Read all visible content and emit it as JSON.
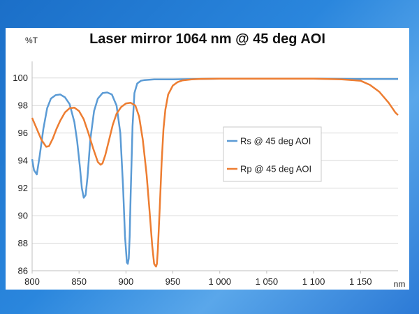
{
  "slide": {
    "background_primary": "#1b6fc8",
    "background_secondary": "#5aa7ea"
  },
  "chart_data": {
    "type": "line",
    "title": "Laser mirror 1064 nm @ 45 deg AOI",
    "ylabel": "%T",
    "xlabel": "nm",
    "xlim": [
      800,
      1190
    ],
    "ylim": [
      86,
      101
    ],
    "x_ticks": [
      800,
      850,
      900,
      950,
      1000,
      1050,
      1100,
      1150
    ],
    "x_tick_labels": [
      "800",
      "850",
      "900",
      "950",
      "1 000",
      "1 050",
      "1 100",
      "1 150"
    ],
    "y_ticks": [
      86,
      88,
      90,
      92,
      94,
      96,
      98,
      100
    ],
    "y_tick_labels": [
      "86",
      "88",
      "90",
      "92",
      "94",
      "96",
      "98",
      "100"
    ],
    "grid": "horizontal",
    "legend_position": "center-right",
    "series": [
      {
        "name": "Rs @ 45 deg AOI",
        "color": "#5b9bd5",
        "x": [
          800,
          802,
          805,
          808,
          812,
          816,
          820,
          825,
          830,
          835,
          840,
          845,
          848,
          851,
          853,
          855,
          857,
          859,
          862,
          866,
          870,
          875,
          880,
          885,
          890,
          894,
          897,
          899,
          901,
          902,
          903,
          904,
          905,
          907,
          909,
          912,
          916,
          920,
          930,
          950,
          1000,
          1050,
          1100,
          1150,
          1190
        ],
        "y": [
          94.1,
          93.3,
          93.0,
          94.3,
          96.3,
          97.8,
          98.5,
          98.75,
          98.8,
          98.6,
          98.1,
          96.8,
          95.4,
          93.5,
          92.0,
          91.3,
          91.5,
          92.8,
          95.5,
          97.6,
          98.5,
          98.9,
          98.95,
          98.8,
          98.0,
          96.0,
          92.0,
          88.5,
          86.6,
          86.5,
          86.9,
          88.5,
          91.5,
          96.5,
          98.9,
          99.6,
          99.8,
          99.85,
          99.9,
          99.9,
          99.95,
          99.95,
          99.95,
          99.92,
          99.92
        ]
      },
      {
        "name": "Rp @ 45 deg AOI",
        "color": "#ed7d31",
        "x": [
          800,
          805,
          810,
          815,
          818,
          822,
          826,
          830,
          835,
          840,
          845,
          850,
          855,
          860,
          865,
          870,
          873,
          875,
          878,
          882,
          886,
          890,
          895,
          900,
          905,
          910,
          914,
          918,
          922,
          925,
          928,
          930,
          932,
          933,
          934,
          936,
          938,
          940,
          942,
          945,
          950,
          955,
          960,
          970,
          980,
          1000,
          1050,
          1100,
          1130,
          1150,
          1160,
          1170,
          1180,
          1187,
          1190
        ],
        "y": [
          97.1,
          96.3,
          95.5,
          95.0,
          95.05,
          95.6,
          96.3,
          96.9,
          97.5,
          97.8,
          97.85,
          97.6,
          97.0,
          96.0,
          94.9,
          93.9,
          93.7,
          93.8,
          94.4,
          95.5,
          96.6,
          97.4,
          97.9,
          98.15,
          98.2,
          98.0,
          97.2,
          95.5,
          93.0,
          90.5,
          87.8,
          86.5,
          86.3,
          86.5,
          87.5,
          90.5,
          93.8,
          96.3,
          97.7,
          98.8,
          99.45,
          99.7,
          99.82,
          99.9,
          99.93,
          99.95,
          99.95,
          99.95,
          99.9,
          99.8,
          99.5,
          99.0,
          98.2,
          97.5,
          97.3
        ]
      }
    ]
  }
}
